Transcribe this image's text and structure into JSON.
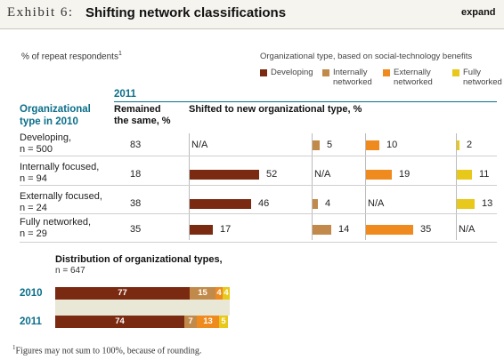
{
  "header": {
    "exhibit_label": "Exhibit 6:",
    "title": "Shifting network classifications",
    "expand_label": "expand"
  },
  "chart_data": [
    {
      "type": "table",
      "subtitle": "% of repeat respondents",
      "subtitle_footnote_mark": "1",
      "legend_title": "Organizational type, based on social-technology benefits",
      "legend": [
        {
          "name": "Developing",
          "color": "#7b2a12"
        },
        {
          "name": "Internally networked",
          "lines": [
            "Internally",
            "networked"
          ],
          "color": "#c28a4a"
        },
        {
          "name": "Externally networked",
          "lines": [
            "Externally",
            "networked"
          ],
          "color": "#ee8a1e"
        },
        {
          "name": "Fully networked",
          "lines": [
            "Fully",
            "networked"
          ],
          "color": "#e8c81a"
        }
      ],
      "year_label": "2011",
      "row_header": [
        "Organizational",
        "type in 2010"
      ],
      "remained_header": [
        "Remained",
        "the same, %"
      ],
      "shifted_header": "Shifted to new organizational type, %",
      "na_label": "N/A",
      "rows": [
        {
          "label": "Developing,",
          "n": "n = 500",
          "remained": 83,
          "shifted": [
            null,
            5,
            10,
            2
          ]
        },
        {
          "label": "Internally focused,",
          "n": "n = 94",
          "remained": 18,
          "shifted": [
            52,
            null,
            19,
            11
          ]
        },
        {
          "label": "Externally focused,",
          "n": "n = 24",
          "remained": 38,
          "shifted": [
            46,
            4,
            null,
            13
          ]
        },
        {
          "label": "Fully networked,",
          "n": "n = 29",
          "remained": 35,
          "shifted": [
            17,
            14,
            35,
            null
          ]
        }
      ]
    },
    {
      "type": "bar",
      "stacked": true,
      "orientation": "horizontal",
      "title": "Distribution of organizational types,",
      "n_label": "n = 647",
      "categories": [
        "2010",
        "2011"
      ],
      "series": [
        {
          "name": "Developing",
          "values": [
            77,
            74
          ],
          "color": "#7b2a12"
        },
        {
          "name": "Internally networked",
          "values": [
            15,
            7
          ],
          "color": "#c28a4a"
        },
        {
          "name": "Externally networked",
          "values": [
            4,
            13
          ],
          "color": "#ee8a1e"
        },
        {
          "name": "Fully networked",
          "values": [
            4,
            5
          ],
          "color": "#e8c81a"
        }
      ]
    }
  ],
  "footnote": "Figures may not sum to 100%, because of rounding.",
  "footnote_mark": "1"
}
